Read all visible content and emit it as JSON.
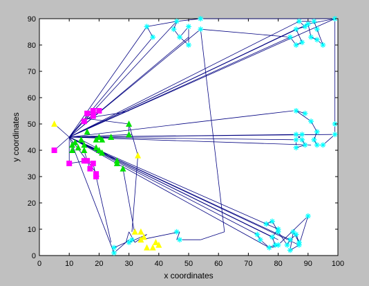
{
  "chart_data": {
    "type": "scatter",
    "title": "",
    "xlabel": "x coordinates",
    "ylabel": "y coordinates",
    "xlim": [
      0,
      100
    ],
    "ylim": [
      0,
      90
    ],
    "xticks": [
      "0",
      "10",
      "20",
      "30",
      "40",
      "50",
      "60",
      "70",
      "80",
      "90",
      "100"
    ],
    "yticks": [
      "0",
      "10",
      "20",
      "30",
      "40",
      "50",
      "60",
      "70",
      "80",
      "90"
    ],
    "grid": false,
    "legend": "none",
    "colors": {
      "figure_background": "#c0c0c0",
      "axes_background": "#ffffff",
      "edges": "#000080",
      "cyan": "#00ffff",
      "green": "#00e000",
      "yellow": "#ffff00",
      "magenta": "#ff00ff"
    },
    "edges": [
      [
        10,
        45,
        36,
        87
      ],
      [
        10,
        45,
        38,
        83
      ],
      [
        10,
        45,
        46,
        89
      ],
      [
        10,
        45,
        50,
        83
      ],
      [
        10,
        45,
        54,
        86
      ],
      [
        10,
        45,
        84,
        83
      ],
      [
        10,
        45,
        86,
        86
      ],
      [
        10,
        45,
        87,
        89
      ],
      [
        10,
        45,
        90,
        88
      ],
      [
        10,
        45,
        99,
        90
      ],
      [
        10,
        45,
        85,
        55
      ],
      [
        10,
        45,
        86,
        46
      ],
      [
        10,
        45,
        86,
        44
      ],
      [
        10,
        45,
        98,
        46
      ],
      [
        10,
        45,
        91,
        42
      ],
      [
        10,
        45,
        73,
        8
      ],
      [
        10,
        45,
        76,
        12
      ],
      [
        10,
        45,
        78,
        7
      ],
      [
        10,
        45,
        80,
        6
      ],
      [
        10,
        45,
        77,
        3
      ],
      [
        10,
        45,
        84,
        6
      ],
      [
        10,
        45,
        87,
        4
      ],
      [
        10,
        45,
        25,
        1
      ],
      [
        10,
        45,
        20,
        30
      ],
      [
        36,
        87,
        38,
        83
      ],
      [
        36,
        87,
        46,
        89
      ],
      [
        45,
        86,
        46,
        89
      ],
      [
        46,
        89,
        54,
        90
      ],
      [
        45,
        86,
        47,
        83
      ],
      [
        47,
        83,
        50,
        80
      ],
      [
        47,
        83,
        50,
        87
      ],
      [
        50,
        87,
        50,
        80
      ],
      [
        54,
        86,
        62,
        9
      ],
      [
        54,
        90,
        99,
        90
      ],
      [
        54,
        86,
        84,
        83
      ],
      [
        84,
        83,
        86,
        80
      ],
      [
        86,
        80,
        88,
        81
      ],
      [
        88,
        81,
        86,
        86
      ],
      [
        86,
        86,
        89,
        87
      ],
      [
        89,
        87,
        87,
        89
      ],
      [
        87,
        89,
        92,
        89
      ],
      [
        92,
        89,
        93,
        86
      ],
      [
        93,
        86,
        95,
        80
      ],
      [
        95,
        80,
        93,
        82
      ],
      [
        93,
        82,
        91,
        83
      ],
      [
        91,
        83,
        90,
        88
      ],
      [
        90,
        88,
        99,
        90
      ],
      [
        99,
        90,
        99,
        50
      ],
      [
        99,
        50,
        99,
        46
      ],
      [
        99,
        46,
        95,
        42
      ],
      [
        95,
        42,
        93,
        42
      ],
      [
        93,
        42,
        92,
        44
      ],
      [
        92,
        44,
        93,
        47
      ],
      [
        93,
        47,
        91,
        51
      ],
      [
        91,
        51,
        86,
        55
      ],
      [
        86,
        44,
        88,
        46
      ],
      [
        86,
        46,
        88,
        44
      ],
      [
        88,
        44,
        89,
        42
      ],
      [
        89,
        42,
        86,
        41
      ],
      [
        86,
        41,
        86,
        44
      ],
      [
        86,
        55,
        89,
        54
      ],
      [
        62,
        9,
        54,
        6
      ],
      [
        54,
        6,
        46,
        6
      ],
      [
        46,
        6,
        47,
        9
      ],
      [
        47,
        9,
        34,
        6
      ],
      [
        73,
        8,
        74,
        6
      ],
      [
        74,
        6,
        77,
        3
      ],
      [
        77,
        3,
        79,
        4
      ],
      [
        79,
        4,
        78,
        7
      ],
      [
        78,
        7,
        80,
        10
      ],
      [
        80,
        10,
        76,
        12
      ],
      [
        76,
        12,
        78,
        13
      ],
      [
        78,
        13,
        80,
        9
      ],
      [
        80,
        9,
        83,
        4
      ],
      [
        83,
        4,
        84,
        6
      ],
      [
        84,
        6,
        86,
        8
      ],
      [
        86,
        8,
        87,
        5
      ],
      [
        87,
        5,
        85,
        9
      ],
      [
        85,
        9,
        84,
        2
      ],
      [
        84,
        2,
        87,
        4
      ],
      [
        87,
        4,
        90,
        15
      ],
      [
        90,
        15,
        80,
        4
      ],
      [
        80,
        4,
        78,
        3
      ],
      [
        30,
        5,
        36,
        8
      ],
      [
        36,
        8,
        32,
        5
      ],
      [
        32,
        5,
        30,
        9
      ],
      [
        30,
        9,
        29,
        5
      ],
      [
        29,
        5,
        25,
        3
      ],
      [
        25,
        3,
        25,
        1
      ],
      [
        25,
        1,
        30,
        6
      ],
      [
        16,
        52,
        20,
        53
      ],
      [
        20,
        53,
        26,
        54
      ],
      [
        26,
        54,
        30,
        55
      ],
      [
        16,
        52,
        30,
        50
      ],
      [
        30,
        50,
        30,
        46
      ],
      [
        10,
        45,
        31,
        46
      ],
      [
        30,
        50,
        33,
        38
      ],
      [
        33,
        38,
        31,
        9
      ],
      [
        28,
        33,
        32,
        8
      ],
      [
        15,
        40,
        16,
        36
      ],
      [
        16,
        36,
        18,
        35
      ],
      [
        18,
        35,
        19,
        30
      ],
      [
        19,
        30,
        24,
        5
      ],
      [
        14,
        44,
        19,
        41
      ],
      [
        5,
        50,
        10,
        45
      ],
      [
        10,
        45,
        5,
        40
      ],
      [
        10,
        45,
        10,
        35
      ],
      [
        10,
        35,
        16,
        36
      ],
      [
        16,
        36,
        17,
        33
      ],
      [
        10,
        45,
        18,
        55
      ],
      [
        18,
        55,
        16,
        54
      ],
      [
        16,
        54,
        15,
        51
      ],
      [
        15,
        51,
        20,
        55
      ],
      [
        19,
        41,
        26,
        36
      ]
    ],
    "series": [
      {
        "color": "#00ffff",
        "marker": "star",
        "points": [
          [
            36,
            87
          ],
          [
            38,
            83
          ],
          [
            45,
            86
          ],
          [
            46,
            89
          ],
          [
            47,
            83
          ],
          [
            50,
            87
          ],
          [
            50,
            80
          ],
          [
            54,
            86
          ],
          [
            54,
            90
          ],
          [
            84,
            83
          ],
          [
            86,
            80
          ],
          [
            88,
            81
          ],
          [
            86,
            86
          ],
          [
            89,
            87
          ],
          [
            87,
            89
          ],
          [
            92,
            89
          ],
          [
            90,
            88
          ],
          [
            93,
            86
          ],
          [
            95,
            80
          ],
          [
            93,
            82
          ],
          [
            91,
            83
          ],
          [
            99,
            90
          ],
          [
            86,
            55
          ],
          [
            89,
            54
          ],
          [
            91,
            51
          ],
          [
            93,
            47
          ],
          [
            92,
            44
          ],
          [
            93,
            42
          ],
          [
            95,
            42
          ],
          [
            99,
            46
          ],
          [
            99,
            50
          ],
          [
            86,
            46
          ],
          [
            88,
            46
          ],
          [
            86,
            44
          ],
          [
            88,
            44
          ],
          [
            89,
            42
          ],
          [
            86,
            41
          ],
          [
            73,
            8
          ],
          [
            74,
            6
          ],
          [
            76,
            12
          ],
          [
            78,
            13
          ],
          [
            78,
            7
          ],
          [
            80,
            10
          ],
          [
            80,
            9
          ],
          [
            77,
            3
          ],
          [
            79,
            4
          ],
          [
            80,
            4
          ],
          [
            83,
            4
          ],
          [
            84,
            6
          ],
          [
            86,
            8
          ],
          [
            87,
            5
          ],
          [
            85,
            9
          ],
          [
            84,
            2
          ],
          [
            87,
            4
          ],
          [
            90,
            15
          ],
          [
            46,
            9
          ],
          [
            47,
            6
          ],
          [
            25,
            1
          ],
          [
            25,
            3
          ],
          [
            30,
            5
          ],
          [
            31,
            6
          ]
        ]
      },
      {
        "color": "#00e000",
        "marker": "triangle",
        "points": [
          [
            11,
            40
          ],
          [
            11,
            42
          ],
          [
            12,
            43
          ],
          [
            13,
            41
          ],
          [
            14,
            44
          ],
          [
            15,
            40
          ],
          [
            15,
            42
          ],
          [
            16,
            47
          ],
          [
            19,
            44
          ],
          [
            20,
            45
          ],
          [
            21,
            44
          ],
          [
            19,
            41
          ],
          [
            20,
            40
          ],
          [
            21,
            39
          ],
          [
            24,
            45
          ],
          [
            26,
            36
          ],
          [
            26,
            35
          ],
          [
            28,
            33
          ],
          [
            30,
            50
          ],
          [
            30,
            46
          ]
        ]
      },
      {
        "color": "#ffff00",
        "marker": "triangle",
        "points": [
          [
            5,
            50
          ],
          [
            33,
            38
          ],
          [
            32,
            9
          ],
          [
            34,
            9
          ],
          [
            34,
            6
          ],
          [
            35,
            7
          ],
          [
            36,
            3
          ],
          [
            38,
            3
          ],
          [
            39,
            5
          ],
          [
            40,
            4
          ]
        ]
      },
      {
        "color": "#ff00ff",
        "marker": "square",
        "points": [
          [
            5,
            40
          ],
          [
            10,
            35
          ],
          [
            15,
            36
          ],
          [
            16,
            36
          ],
          [
            17,
            33
          ],
          [
            18,
            35
          ],
          [
            19,
            30
          ],
          [
            19,
            31
          ],
          [
            16,
            54
          ],
          [
            18,
            55
          ],
          [
            20,
            55
          ],
          [
            15,
            51
          ],
          [
            18,
            53
          ]
        ]
      }
    ]
  }
}
